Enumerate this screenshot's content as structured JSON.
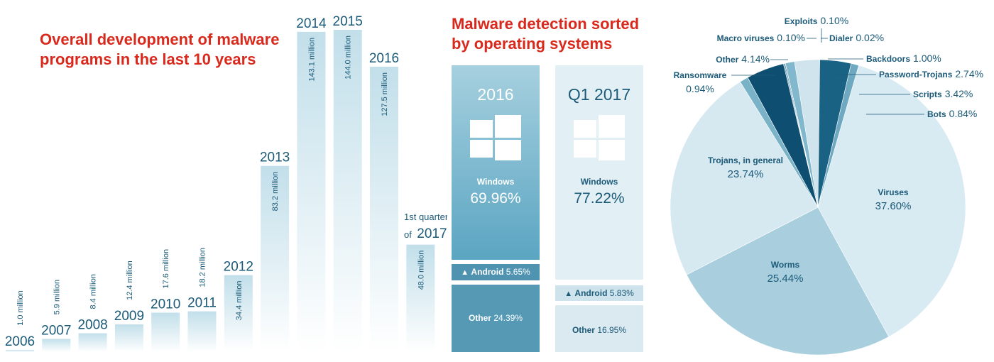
{
  "colors": {
    "title_red": "#d9291c",
    "bar_top": "#c2dfea",
    "bar_bottom": "#ffffff",
    "text_dark": "#1b5a78",
    "win_2016_top": "#a6d0df",
    "win_2016_bottom": "#5ba5c2",
    "win_2017_bg": "#e2f0f6",
    "other_2016": "#5599b5",
    "other_2017": "#cfe3ec"
  },
  "bar_section": {
    "title": "Overall development of malware\nprograms in the last 10 years",
    "quarter_label_line1": "1st quarter",
    "quarter_label_line2_prefix": "of",
    "quarter_label_line2_year": "2017"
  },
  "os_section": {
    "title": "Malware detection sorted\nby operating systems",
    "col_2016": {
      "year": "2016",
      "windows_label": "Windows",
      "windows_pct": "69.96%",
      "android_label": "Android",
      "android_pct": "5.65%",
      "other_label": "Other",
      "other_pct": "24.39%"
    },
    "col_2017": {
      "year": "Q1 2017",
      "windows_label": "Windows",
      "windows_pct": "77.22%",
      "android_label": "Android",
      "android_pct": "5.83%",
      "other_label": "Other",
      "other_pct": "16.95%"
    }
  },
  "chart_data": [
    {
      "type": "bar",
      "title": "Overall development of malware programs in the last 10 years",
      "categories": [
        "2006",
        "2007",
        "2008",
        "2009",
        "2010",
        "2011",
        "2012",
        "2013",
        "2014",
        "2015",
        "2016",
        "2017"
      ],
      "values": [
        1.0,
        5.9,
        8.4,
        12.4,
        17.6,
        18.2,
        34.4,
        83.2,
        143.1,
        144.0,
        127.5,
        48.0
      ],
      "value_labels": [
        "1.0 million",
        "5.9 million",
        "8.4 million",
        "12.4 million",
        "17.6 million",
        "18.2 million",
        "34.4 million",
        "83.2 million",
        "143.1 million",
        "144.0 million",
        "127.5 million",
        "48.0 million"
      ],
      "unit": "million"
    },
    {
      "type": "bar",
      "title": "Malware detection sorted by operating systems",
      "categories": [
        "2016",
        "Q1 2017"
      ],
      "series": [
        {
          "name": "Windows",
          "values": [
            69.96,
            77.22
          ]
        },
        {
          "name": "Android",
          "values": [
            5.65,
            5.83
          ]
        },
        {
          "name": "Other",
          "values": [
            24.39,
            16.95
          ]
        }
      ],
      "stacked": true
    },
    {
      "type": "pie",
      "slices": [
        {
          "label": "Viruses",
          "value": 37.6,
          "pct_text": "37.60%",
          "color": "#d9ebf2"
        },
        {
          "label": "Worms",
          "value": 25.44,
          "pct_text": "25.44%",
          "color": "#a9cfde"
        },
        {
          "label": "Trojans, in general",
          "value": 23.74,
          "pct_text": "23.74%",
          "color": "#d6e8f0"
        },
        {
          "label": "Ransomware",
          "value": 0.94,
          "pct_text": "0.94%",
          "color": "#7ab3c8"
        },
        {
          "label": "Other",
          "value": 4.14,
          "pct_text": "4.14%",
          "color": "#0e4f71"
        },
        {
          "label": "Macro viruses",
          "value": 0.1,
          "pct_text": "0.10%",
          "color": "#2f7c9e"
        },
        {
          "label": "Exploits",
          "value": 0.1,
          "pct_text": "0.10%",
          "color": "#1f6a8e"
        },
        {
          "label": "Dialer",
          "value": 0.02,
          "pct_text": "0.02%",
          "color": "#5e9fbc"
        },
        {
          "label": "Backdoors",
          "value": 1.0,
          "pct_text": "1.00%",
          "color": "#82b8cd"
        },
        {
          "label": "Password-Trojans",
          "value": 2.74,
          "pct_text": "2.74%",
          "color": "#cfe4ed"
        },
        {
          "label": "Scripts",
          "value": 3.42,
          "pct_text": "3.42%",
          "color": "#1a6284"
        },
        {
          "label": "Bots",
          "value": 0.84,
          "pct_text": "0.84%",
          "color": "#6fa9c1"
        }
      ]
    }
  ]
}
